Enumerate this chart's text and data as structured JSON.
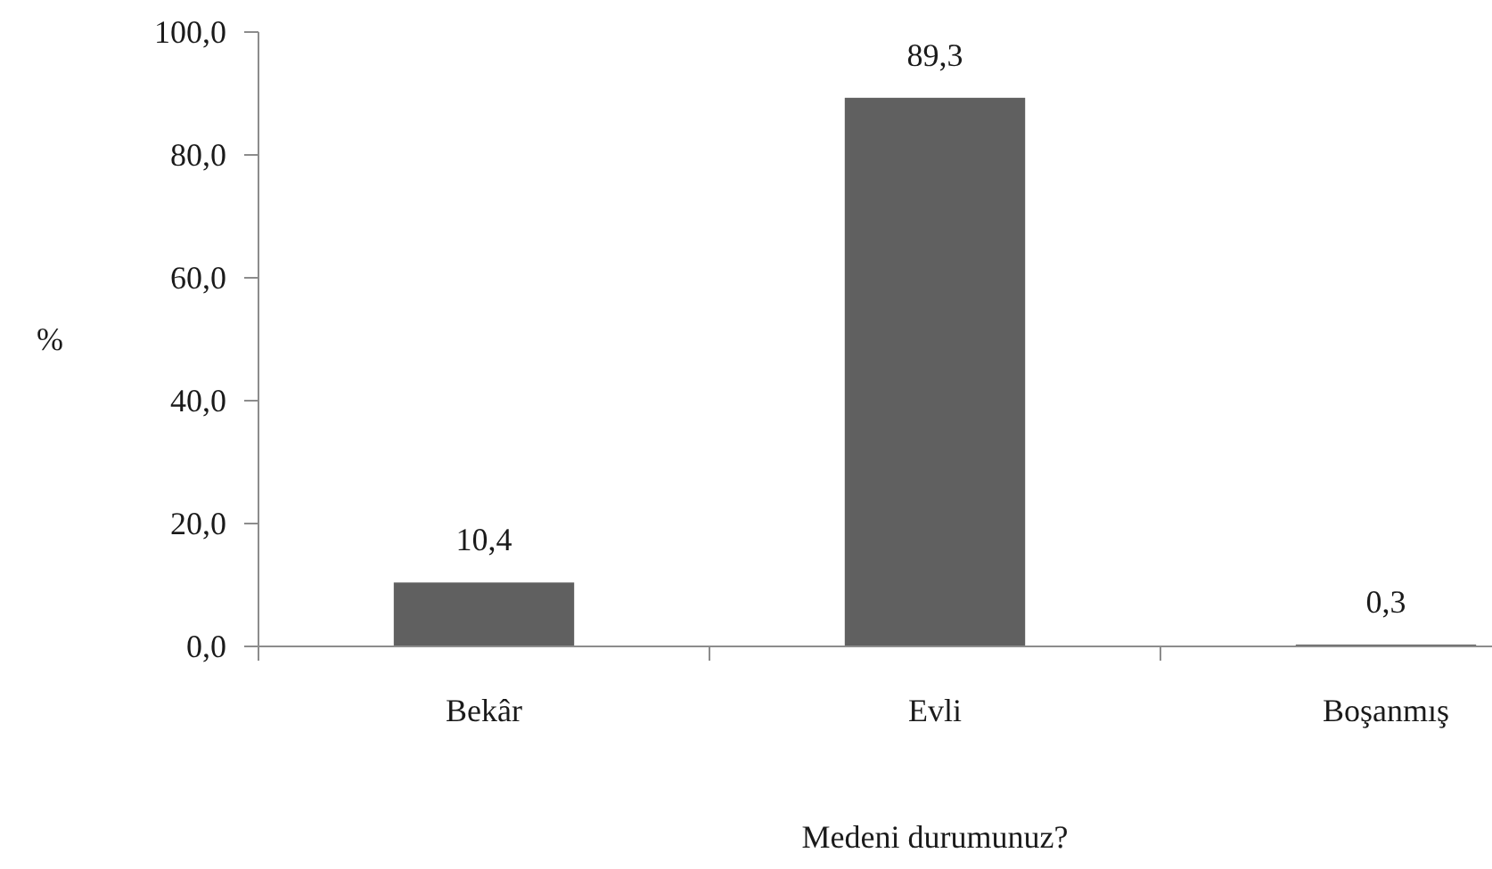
{
  "chart_data": {
    "type": "bar",
    "xlabel": "Medeni durumunuz?",
    "ylabel": "%",
    "categories": [
      "Bekâr",
      "Evli",
      "Boşanmış"
    ],
    "values": [
      10.4,
      89.3,
      0.3
    ],
    "color": "#606060",
    "value_labels": [
      "10,4",
      "89,3",
      "0,3"
    ],
    "ylim": [
      0,
      100
    ],
    "yticks": [
      {
        "value": 0,
        "label": "0,0"
      },
      {
        "value": 20,
        "label": "20,0"
      },
      {
        "value": 40,
        "label": "40,0"
      },
      {
        "value": 60,
        "label": "60,0"
      },
      {
        "value": 80,
        "label": "80,0"
      },
      {
        "value": 100,
        "label": "100,0"
      }
    ],
    "grid": false
  }
}
